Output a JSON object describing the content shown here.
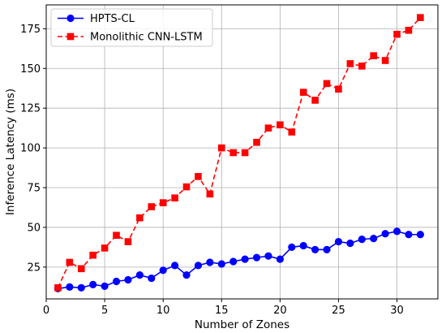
{
  "chart_data": {
    "type": "line",
    "xlabel": "Number of Zones",
    "ylabel": "Inference Latency (ms)",
    "xlim": [
      0,
      33.5
    ],
    "ylim": [
      5,
      190
    ],
    "xticks": [
      0,
      5,
      10,
      15,
      20,
      25,
      30
    ],
    "yticks": [
      25,
      50,
      75,
      100,
      125,
      150,
      175
    ],
    "grid": true,
    "legend_position": "top-left",
    "x": [
      1,
      2,
      3,
      4,
      5,
      6,
      7,
      8,
      9,
      10,
      11,
      12,
      13,
      14,
      15,
      16,
      17,
      18,
      19,
      20,
      21,
      22,
      23,
      24,
      25,
      26,
      27,
      28,
      29,
      30,
      31,
      32
    ],
    "series": [
      {
        "name": "HPTS-CL",
        "color": "#0000ff",
        "line_style": "solid",
        "marker": "circle",
        "values": [
          11.5,
          12.5,
          12,
          14,
          13,
          16,
          17,
          20,
          18,
          23,
          26,
          20,
          26,
          28,
          27,
          28.5,
          30,
          31,
          32,
          30,
          37.5,
          38.5,
          36,
          36,
          41,
          40,
          42.5,
          43,
          46,
          47.5,
          45.5,
          45.5
        ]
      },
      {
        "name": "Monolithic CNN-LSTM",
        "color": "#ff0000",
        "line_style": "dashed",
        "marker": "square",
        "values": [
          12,
          28,
          24,
          32.5,
          37,
          45,
          41,
          56,
          63,
          65.5,
          68.5,
          75.5,
          82,
          71,
          100,
          97,
          97,
          103.5,
          112.5,
          114.5,
          110,
          135,
          130,
          140.5,
          137,
          153,
          151.5,
          158,
          155,
          171.5,
          174,
          182
        ]
      }
    ]
  }
}
